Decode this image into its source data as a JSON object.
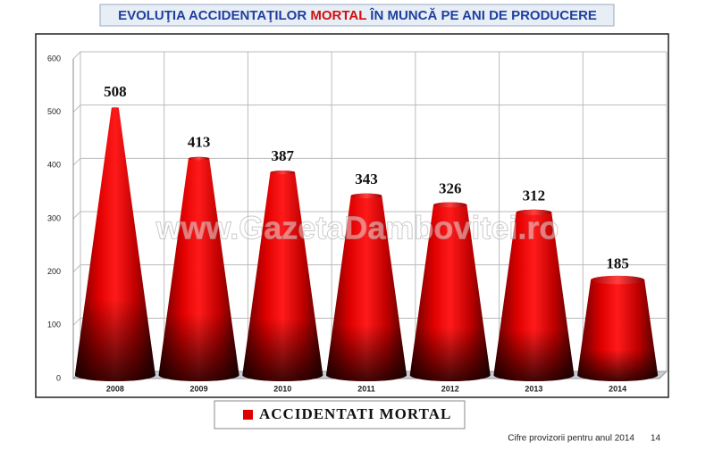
{
  "chart_data": {
    "type": "cone",
    "title_parts": [
      "EVOLUŢIA ACCIDENTAŢILOR ",
      "MORTAL",
      " ÎN MUNCĂ PE ANI DE PRODUCERE"
    ],
    "watermark": "www.GazetaDambovitei.ro",
    "categories": [
      "2008",
      "2009",
      "2010",
      "2011",
      "2012",
      "2013",
      "2014"
    ],
    "series": [
      {
        "name": "ACCIDENTATI MORTAL",
        "color": "#e00000",
        "values": [
          508,
          413,
          387,
          343,
          326,
          312,
          185
        ]
      }
    ],
    "ylim": [
      0,
      600
    ],
    "yticks": [
      0,
      100,
      200,
      300,
      400,
      500,
      600
    ],
    "grid": true,
    "footer": "Cifre provizorii pentru  anul 2014",
    "page_number": "14"
  }
}
